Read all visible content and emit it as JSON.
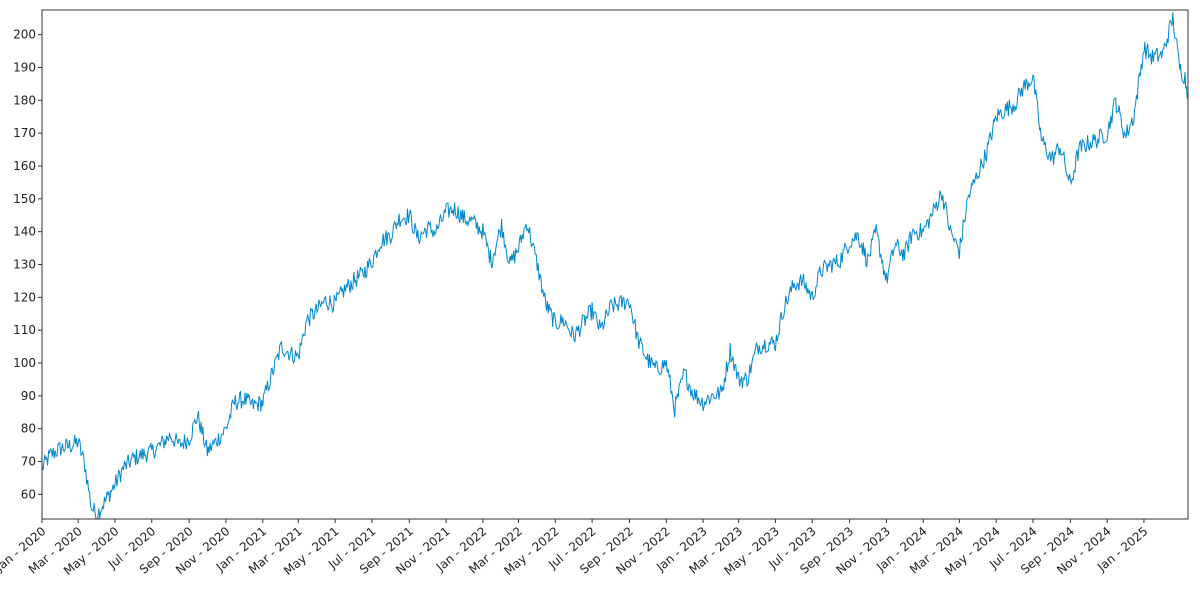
{
  "chart_data": {
    "type": "line",
    "title": "",
    "xlabel": "",
    "ylabel": "",
    "grid": false,
    "legend": "none",
    "line_color": "#0088cc",
    "xlim": [
      "2020-01-01",
      "2025-03-15"
    ],
    "ylim": [
      52.5,
      207.5
    ],
    "yticks": [
      60,
      70,
      80,
      90,
      100,
      110,
      120,
      130,
      140,
      150,
      160,
      170,
      180,
      190,
      200
    ],
    "xticks": [
      {
        "date": "2020-01-01",
        "label": "Jan - 2020"
      },
      {
        "date": "2020-03-01",
        "label": "Mar - 2020"
      },
      {
        "date": "2020-05-01",
        "label": "May - 2020"
      },
      {
        "date": "2020-07-01",
        "label": "Jul - 2020"
      },
      {
        "date": "2020-09-01",
        "label": "Sep - 2020"
      },
      {
        "date": "2020-11-01",
        "label": "Nov - 2020"
      },
      {
        "date": "2021-01-01",
        "label": "Jan - 2021"
      },
      {
        "date": "2021-03-01",
        "label": "Mar - 2021"
      },
      {
        "date": "2021-05-01",
        "label": "May - 2021"
      },
      {
        "date": "2021-07-01",
        "label": "Jul - 2021"
      },
      {
        "date": "2021-09-01",
        "label": "Sep - 2021"
      },
      {
        "date": "2021-11-01",
        "label": "Nov - 2021"
      },
      {
        "date": "2022-01-01",
        "label": "Jan - 2022"
      },
      {
        "date": "2022-03-01",
        "label": "Mar - 2022"
      },
      {
        "date": "2022-05-01",
        "label": "May - 2022"
      },
      {
        "date": "2022-07-01",
        "label": "Jul - 2022"
      },
      {
        "date": "2022-09-01",
        "label": "Sep - 2022"
      },
      {
        "date": "2022-11-01",
        "label": "Nov - 2022"
      },
      {
        "date": "2023-01-01",
        "label": "Jan - 2023"
      },
      {
        "date": "2023-03-01",
        "label": "Mar - 2023"
      },
      {
        "date": "2023-05-01",
        "label": "May - 2023"
      },
      {
        "date": "2023-07-01",
        "label": "Jul - 2023"
      },
      {
        "date": "2023-09-01",
        "label": "Sep - 2023"
      },
      {
        "date": "2023-11-01",
        "label": "Nov - 2023"
      },
      {
        "date": "2024-01-01",
        "label": "Jan - 2024"
      },
      {
        "date": "2024-03-01",
        "label": "Mar - 2024"
      },
      {
        "date": "2024-05-01",
        "label": "May - 2024"
      },
      {
        "date": "2024-07-01",
        "label": "Jul - 2024"
      },
      {
        "date": "2024-09-01",
        "label": "Sep - 2024"
      },
      {
        "date": "2024-11-01",
        "label": "Nov - 2024"
      },
      {
        "date": "2025-01-01",
        "label": "Jan - 2025"
      }
    ],
    "series": [
      {
        "x": [
          "2020-01-01",
          "2020-01-15",
          "2020-02-01",
          "2020-02-20",
          "2020-03-01",
          "2020-03-12",
          "2020-03-23",
          "2020-04-01",
          "2020-04-15",
          "2020-05-01",
          "2020-05-15",
          "2020-06-01",
          "2020-06-15",
          "2020-07-01",
          "2020-07-15",
          "2020-08-01",
          "2020-08-15",
          "2020-09-01",
          "2020-09-15",
          "2020-10-01",
          "2020-10-15",
          "2020-11-01",
          "2020-11-15",
          "2020-12-01",
          "2020-12-15",
          "2021-01-01",
          "2021-01-15",
          "2021-02-01",
          "2021-02-15",
          "2021-03-01",
          "2021-03-15",
          "2021-04-01",
          "2021-04-15",
          "2021-05-01",
          "2021-05-15",
          "2021-06-01",
          "2021-06-15",
          "2021-07-01",
          "2021-07-15",
          "2021-08-01",
          "2021-08-15",
          "2021-09-01",
          "2021-09-15",
          "2021-10-01",
          "2021-10-15",
          "2021-11-01",
          "2021-11-15",
          "2021-12-01",
          "2021-12-15",
          "2022-01-01",
          "2022-01-15",
          "2022-02-01",
          "2022-02-15",
          "2022-03-01",
          "2022-03-15",
          "2022-04-01",
          "2022-04-15",
          "2022-05-01",
          "2022-05-15",
          "2022-06-01",
          "2022-06-15",
          "2022-07-01",
          "2022-07-15",
          "2022-08-01",
          "2022-08-15",
          "2022-09-01",
          "2022-09-15",
          "2022-10-01",
          "2022-10-15",
          "2022-11-01",
          "2022-11-15",
          "2022-12-01",
          "2022-12-15",
          "2023-01-01",
          "2023-01-15",
          "2023-02-01",
          "2023-02-15",
          "2023-03-01",
          "2023-03-15",
          "2023-04-01",
          "2023-04-15",
          "2023-05-01",
          "2023-05-15",
          "2023-06-01",
          "2023-06-15",
          "2023-07-01",
          "2023-07-15",
          "2023-08-01",
          "2023-08-15",
          "2023-09-01",
          "2023-09-15",
          "2023-10-01",
          "2023-10-15",
          "2023-11-01",
          "2023-11-15",
          "2023-12-01",
          "2023-12-15",
          "2024-01-01",
          "2024-01-15",
          "2024-02-01",
          "2024-02-15",
          "2024-03-01",
          "2024-03-15",
          "2024-04-01",
          "2024-04-15",
          "2024-05-01",
          "2024-05-15",
          "2024-06-01",
          "2024-06-15",
          "2024-07-01",
          "2024-07-15",
          "2024-08-01",
          "2024-08-15",
          "2024-09-01",
          "2024-09-15",
          "2024-10-01",
          "2024-10-15",
          "2024-11-01",
          "2024-11-15",
          "2024-12-01",
          "2024-12-15",
          "2025-01-01",
          "2025-01-15",
          "2025-02-01",
          "2025-02-10",
          "2025-02-18",
          "2025-03-01",
          "2025-03-10",
          "2025-03-15"
        ],
        "y": [
          68,
          72,
          74,
          75,
          76,
          69,
          56,
          54,
          58,
          63,
          68,
          71,
          72,
          73,
          75,
          78,
          75,
          77,
          84,
          73,
          76,
          80,
          88,
          89,
          87,
          88,
          96,
          105,
          103,
          102,
          113,
          116,
          119,
          118,
          122,
          125,
          127,
          131,
          137,
          139,
          144,
          145,
          138,
          141,
          140,
          146,
          147,
          144,
          143,
          140,
          131,
          142,
          130,
          135,
          143,
          130,
          118,
          112,
          113,
          108,
          112,
          116,
          110,
          117,
          118,
          119,
          107,
          101,
          98,
          100,
          86,
          97,
          91,
          88,
          90,
          91,
          104,
          95,
          95,
          105,
          106,
          106,
          117,
          124,
          125,
          120,
          128,
          130,
          131,
          137,
          139,
          131,
          140,
          125,
          136,
          133,
          140,
          140,
          145,
          152,
          140,
          134,
          150,
          158,
          164,
          175,
          177,
          179,
          184,
          187,
          168,
          162,
          166,
          154,
          165,
          167,
          168,
          170,
          180,
          169,
          175,
          196,
          193,
          194,
          200,
          205,
          190,
          187,
          181
        ]
      }
    ]
  }
}
